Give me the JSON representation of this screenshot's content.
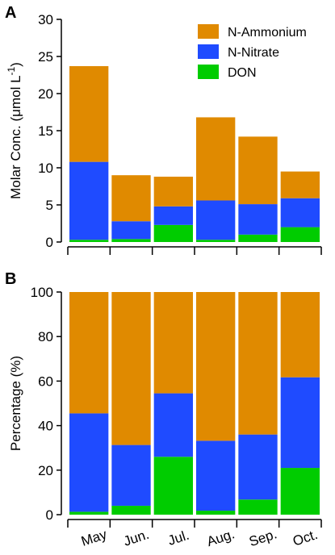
{
  "colors": {
    "N-Ammonium": "#e08a00",
    "N-Nitrate": "#1f4bff",
    "DON": "#00cc00",
    "axis": "#000000",
    "bar_border": "#ffffff"
  },
  "chart_data": [
    {
      "panel_label": "A",
      "type": "bar",
      "stacked": true,
      "categories": [
        "May",
        "Jun.",
        "Jul.",
        "Aug.",
        "Sep.",
        "Oct."
      ],
      "series": [
        {
          "name": "DON",
          "values": [
            0.3,
            0.4,
            2.3,
            0.3,
            1.0,
            2.0
          ]
        },
        {
          "name": "N-Nitrate",
          "values": [
            10.5,
            2.4,
            2.5,
            5.3,
            4.1,
            3.9
          ]
        },
        {
          "name": "N-Ammonium",
          "values": [
            12.9,
            6.2,
            4.0,
            11.2,
            9.1,
            3.6
          ]
        }
      ],
      "ylabel": "Molar Conc. (μmol L",
      "ylabel_sup": "-1",
      "ylabel_suffix": ")",
      "ylim": [
        0,
        30
      ],
      "yticks": [
        "0",
        "5",
        "10",
        "15",
        "20",
        "25",
        "30"
      ],
      "legend": {
        "placement": "top-right",
        "entries": [
          "N-Ammonium",
          "N-Nitrate",
          "DON"
        ]
      },
      "grid": false
    },
    {
      "panel_label": "B",
      "type": "bar",
      "stacked": true,
      "categories": [
        "May",
        "Jun.",
        "Jul.",
        "Aug.",
        "Sep.",
        "Oct."
      ],
      "category_labels_rotated": true,
      "series": [
        {
          "name": "DON",
          "values": [
            1.3,
            4.0,
            26.0,
            1.8,
            6.8,
            21.0
          ]
        },
        {
          "name": "N-Nitrate",
          "values": [
            44.2,
            27.3,
            28.5,
            31.4,
            29.2,
            40.7
          ]
        },
        {
          "name": "N-Ammonium",
          "values": [
            54.5,
            68.7,
            45.5,
            66.8,
            64.0,
            38.3
          ]
        }
      ],
      "ylabel": "Percentage (%)",
      "ylim": [
        0,
        100
      ],
      "yticks": [
        "0",
        "20",
        "40",
        "60",
        "80",
        "100"
      ],
      "grid": false
    }
  ]
}
